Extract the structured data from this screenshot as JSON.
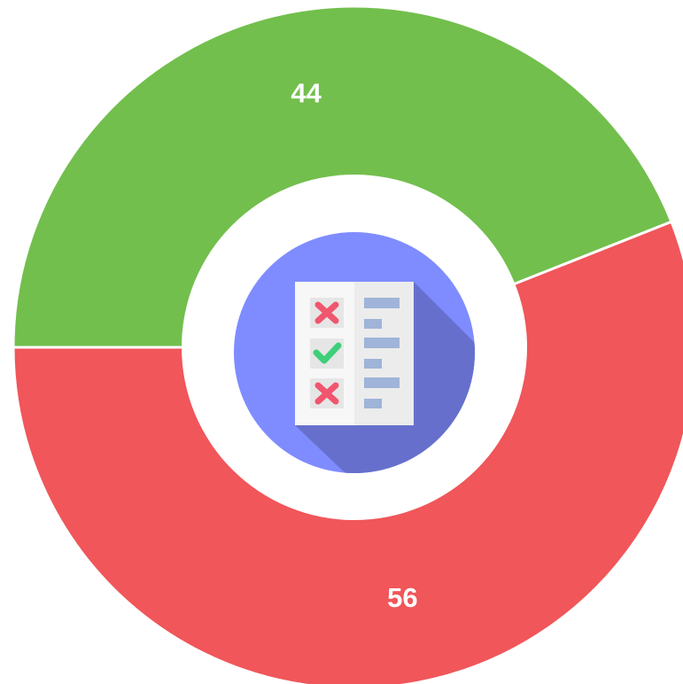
{
  "chart_data": {
    "type": "donut",
    "categories": [
      null,
      null
    ],
    "values": [
      44,
      56
    ],
    "colors": [
      "#72bf4d",
      "#f0565a"
    ]
  }
}
